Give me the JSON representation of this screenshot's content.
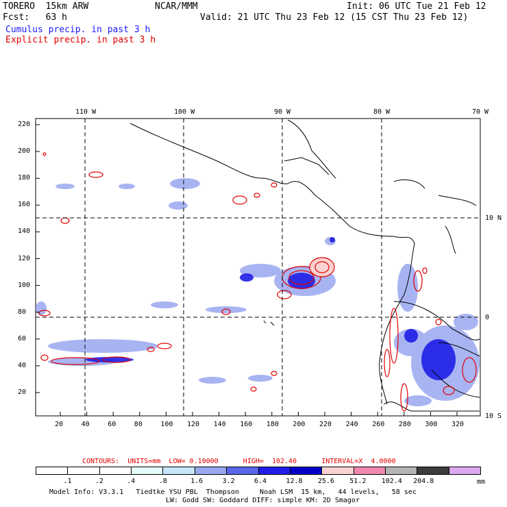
{
  "header": {
    "model": "TORERO  15km ARW",
    "center": "NCAR/MMM",
    "init": "Init: 06 UTC Tue 21 Feb 12",
    "fcst": "Fcst:   63 h",
    "valid": "Valid: 21 UTC Thu 23 Feb 12 (15 CST Thu 23 Feb 12)"
  },
  "fields": {
    "cumulus": "Cumulus precip. in past 3 h",
    "explicit": "Explicit precip. in past 3 h",
    "cumulus_color": "#1a1aff",
    "explicit_color": "#e00000"
  },
  "map": {
    "lon_labels": [
      "110 W",
      "100 W",
      "90 W",
      "80 W",
      "70 W"
    ],
    "lat_labels": [
      "10 N",
      "0",
      "10 S"
    ],
    "y_ticks": [
      "220",
      "200",
      "180",
      "160",
      "140",
      "120",
      "100",
      "80",
      "60",
      "40",
      "20"
    ],
    "x_ticks": [
      "20",
      "40",
      "60",
      "80",
      "100",
      "120",
      "140",
      "160",
      "180",
      "200",
      "220",
      "240",
      "260",
      "280",
      "300",
      "320"
    ]
  },
  "contours": {
    "label": "CONTOURS:  UNITS=mm  LOW= 0.10000      HIGH=  102.40      INTERVAL=X  4.0000"
  },
  "colorbar": {
    "units": "mm",
    "labels": [
      ".1",
      ".2",
      ".4",
      ".8",
      "1.6",
      "3.2",
      "6.4",
      "12.8",
      "25.6",
      "51.2",
      "102.4",
      "204.8"
    ],
    "colors": [
      "#ffffff",
      "#ffffff",
      "#ffffff",
      "#e6fafa",
      "#c8e6fa",
      "#9aa8f0",
      "#5a66e8",
      "#1e1ee6",
      "#0000c8",
      "#fad2d2",
      "#f088b0",
      "#b4b4b4",
      "#3c3c3c",
      "#dca8f0"
    ]
  },
  "footer": {
    "line1": "Model Info: V3.3.1   Tiedtke YSU PBL  Thompson     Noah LSM  15 km,   44 levels,   58 sec",
    "line2": "LW: Godd SW: Goddard DIFF: simple KM: 2D Smagor"
  }
}
